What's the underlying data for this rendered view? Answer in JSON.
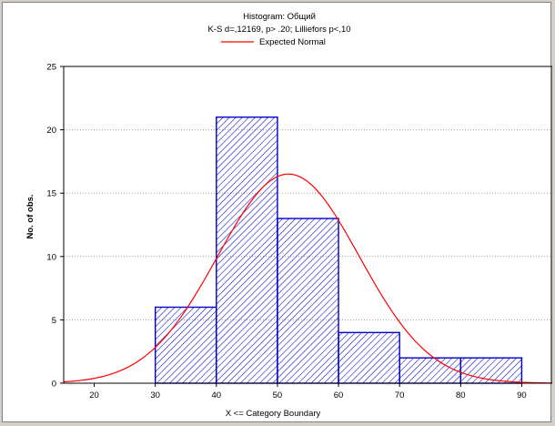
{
  "chart_data": {
    "type": "bar",
    "title": "Histogram: Общий",
    "subtitle": "K-S d=,12169, p> .20; Lilliefors p<,10",
    "legend": [
      {
        "name": "Expected Normal",
        "color": "#ff0000",
        "position": "top-center"
      }
    ],
    "xlabel": "X <= Category Boundary",
    "ylabel": "No. of obs.",
    "xlim": [
      15,
      95
    ],
    "ylim": [
      0,
      25
    ],
    "x_ticks": [
      "20",
      "30",
      "40",
      "50",
      "60",
      "70",
      "80",
      "90"
    ],
    "y_ticks": [
      "0",
      "5",
      "10",
      "15",
      "20",
      "25"
    ],
    "grid": true,
    "bins": [
      {
        "from": 30,
        "to": 40,
        "count": 6
      },
      {
        "from": 40,
        "to": 50,
        "count": 21
      },
      {
        "from": 50,
        "to": 60,
        "count": 13
      },
      {
        "from": 60,
        "to": 70,
        "count": 4
      },
      {
        "from": 70,
        "to": 80,
        "count": 2
      },
      {
        "from": 80,
        "to": 90,
        "count": 2
      }
    ],
    "expected_normal": {
      "mean": 51.8,
      "sd": 11.6,
      "n": 48,
      "bin_width": 10
    },
    "colors": {
      "bar_stroke": "#0000c8",
      "hatch": "#0000c8",
      "curve": "#ff0000",
      "grid": "#a0a0a0"
    }
  }
}
